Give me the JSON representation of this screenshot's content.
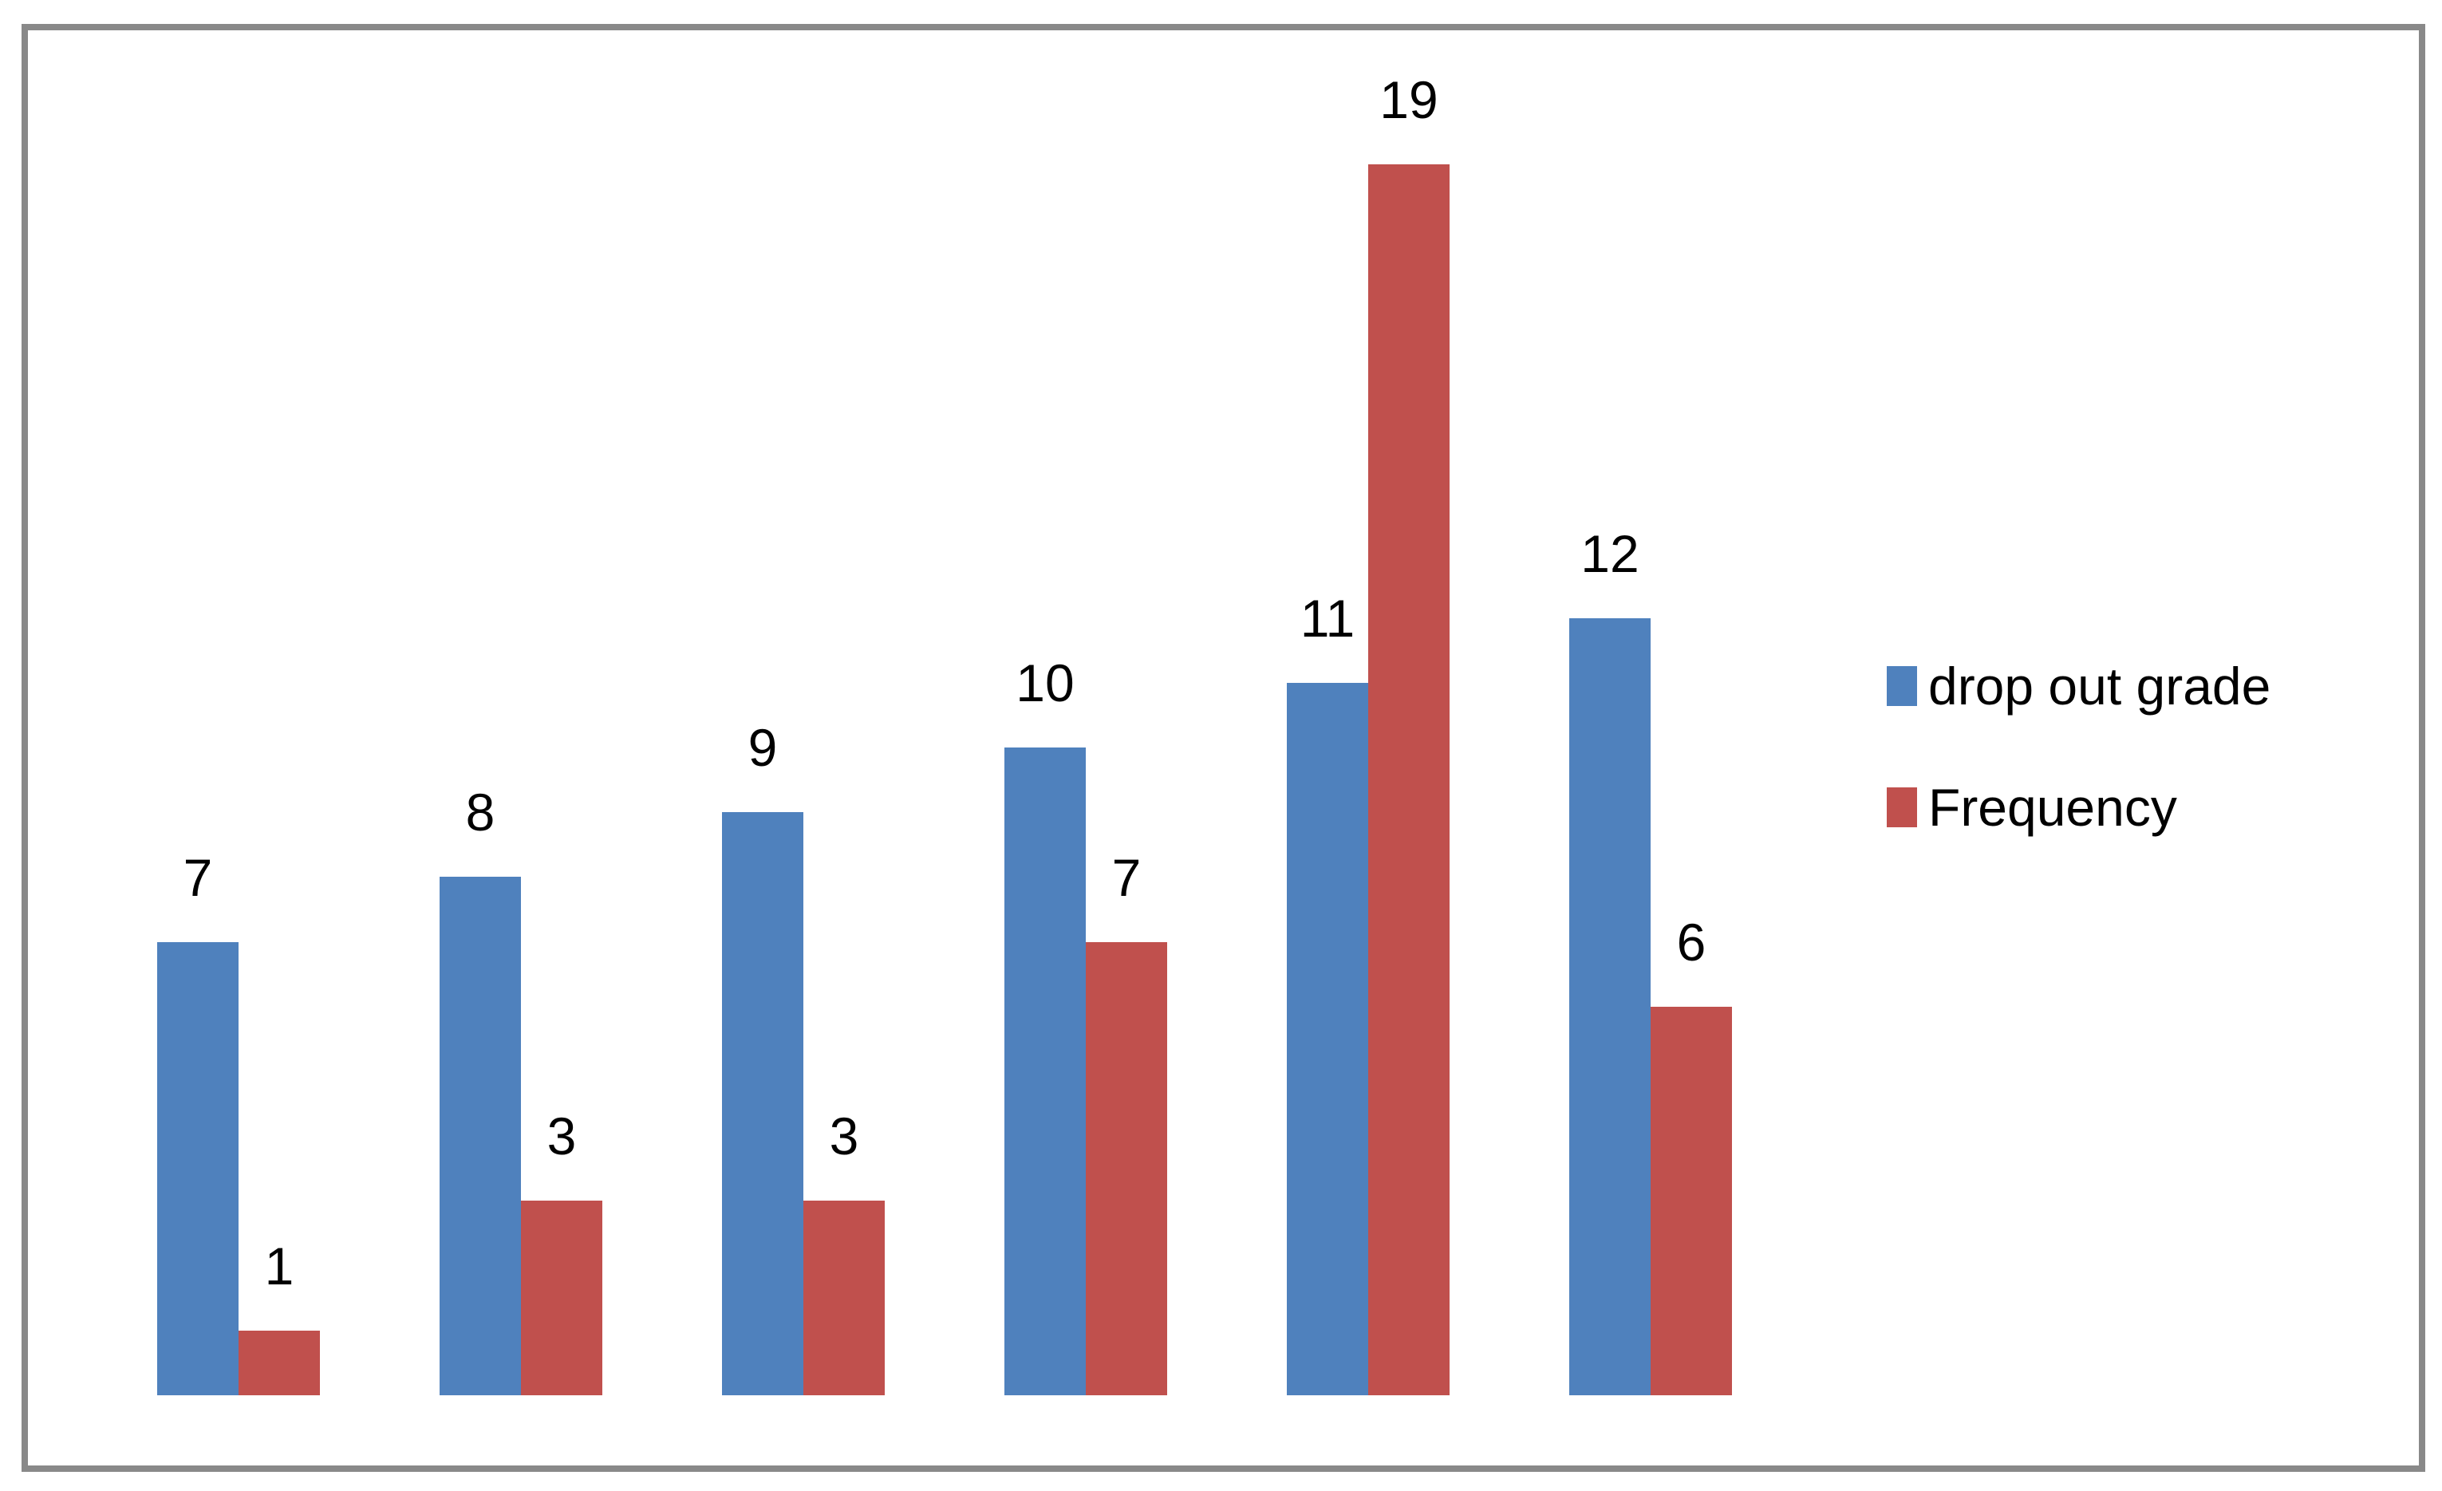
{
  "page": {
    "background": "#ffffff",
    "frame_border_color": "#898989"
  },
  "chart_data": {
    "type": "bar",
    "categories": [
      "",
      "",
      "",
      "",
      "",
      ""
    ],
    "series": [
      {
        "name": "drop out grade",
        "color": "#4F81BD",
        "values": [
          7,
          8,
          9,
          10,
          11,
          12
        ]
      },
      {
        "name": "Frequency",
        "color": "#C0504D",
        "values": [
          1,
          3,
          3,
          7,
          19,
          6
        ]
      }
    ],
    "data_labels": [
      {
        "series": "drop out grade",
        "labels": [
          "7",
          "8",
          "9",
          "10",
          "11",
          "12"
        ]
      },
      {
        "series": "Frequency",
        "labels": [
          "1",
          "3",
          "3",
          "7",
          "19",
          "6"
        ]
      }
    ],
    "title": "",
    "xlabel": "",
    "ylabel": "",
    "ylim": [
      0,
      19
    ],
    "axes_visible": false,
    "gridlines": false,
    "legend_position": "right",
    "legend_entries": [
      "drop out grade",
      "Frequency"
    ]
  }
}
